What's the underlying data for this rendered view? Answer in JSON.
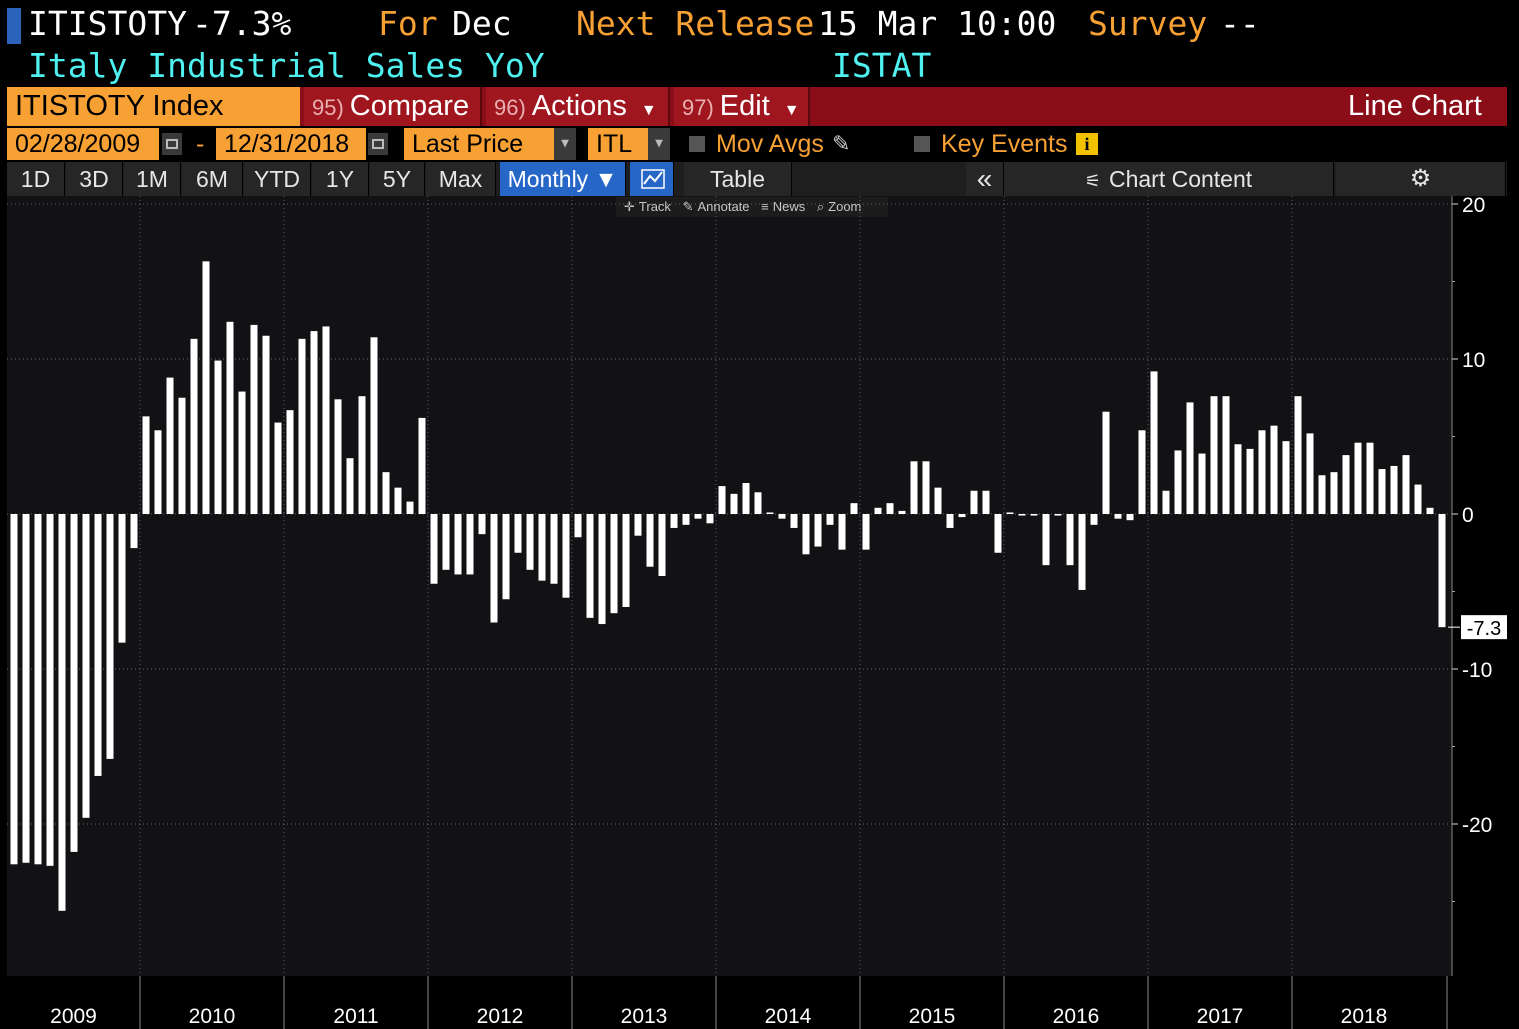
{
  "header": {
    "ticker": "ITISTOTY",
    "last_value": "-7.3%",
    "for_label": "For",
    "for_value": "Dec",
    "next_release_label": "Next Release",
    "next_release_value": "15 Mar 10:00",
    "survey_label": "Survey",
    "survey_value": "--",
    "description": "Italy Industrial Sales YoY",
    "source": "ISTAT"
  },
  "function_bar": {
    "index_field": "ITISTOTY Index",
    "compare": {
      "num": "95)",
      "label": "Compare"
    },
    "actions": {
      "num": "96)",
      "label": "Actions"
    },
    "edit": {
      "num": "97)",
      "label": "Edit"
    },
    "chart_type": "Line Chart"
  },
  "fields": {
    "start_date": "02/28/2009",
    "date_separator": "-",
    "end_date": "12/31/2018",
    "price_field": "Last Price",
    "currency": "ITL",
    "mov_avgs_label": "Mov Avgs",
    "key_events_label": "Key Events"
  },
  "range_buttons": [
    "1D",
    "3D",
    "1M",
    "6M",
    "YTD",
    "1Y",
    "5Y",
    "Max"
  ],
  "frequency": "Monthly ▼",
  "table_label": "Table",
  "chart_content_label": "Chart Content",
  "toolstrip": {
    "track": "Track",
    "annotate": "Annotate",
    "news": "News",
    "zoom": "Zoom"
  },
  "colors": {
    "accent_orange": "#f7a033",
    "title_cyan": "#4ff0f0",
    "function_bar_red": "#8b0d18",
    "selected_blue": "#2566c7",
    "bar_color": "#ffffff"
  },
  "chart_data": {
    "type": "bar",
    "title": "Italy Industrial Sales YoY",
    "x_start": "2009-02",
    "x_end": "2018-12",
    "frequency": "monthly",
    "ylim": [
      -29,
      20
    ],
    "yticks": [
      20,
      10,
      0,
      -10,
      -20
    ],
    "ytick_labels": [
      "20",
      "10",
      "0",
      "-10",
      "-20"
    ],
    "xtick_labels": [
      "2009",
      "2010",
      "2011",
      "2012",
      "2013",
      "2014",
      "2015",
      "2016",
      "2017",
      "2018"
    ],
    "last_value_label": "-7.3",
    "grid": true,
    "values": [
      -22.6,
      -22.5,
      -22.6,
      -22.7,
      -25.6,
      -21.8,
      -19.6,
      -16.9,
      -15.8,
      -8.3,
      -2.2,
      6.3,
      5.4,
      8.8,
      7.5,
      11.3,
      16.3,
      9.9,
      12.4,
      7.9,
      12.2,
      11.5,
      5.9,
      6.7,
      11.3,
      11.8,
      12.1,
      7.4,
      3.6,
      7.6,
      11.4,
      2.7,
      1.7,
      0.8,
      6.2,
      -4.5,
      -3.6,
      -3.9,
      -3.9,
      -1.3,
      -7.0,
      -5.5,
      -2.5,
      -3.6,
      -4.3,
      -4.5,
      -5.4,
      -1.5,
      -6.7,
      -7.1,
      -6.4,
      -6.0,
      -1.4,
      -3.4,
      -4.0,
      -0.9,
      -0.7,
      -0.3,
      -0.6,
      1.8,
      1.3,
      2.0,
      1.4,
      0.1,
      -0.3,
      -0.9,
      -2.6,
      -2.1,
      -0.7,
      -2.3,
      0.7,
      -2.3,
      0.4,
      0.7,
      0.2,
      3.4,
      3.4,
      1.7,
      -0.9,
      -0.2,
      1.5,
      1.5,
      -2.5,
      0.1,
      -0.1,
      -0.1,
      -3.3,
      -0.1,
      -3.3,
      -4.9,
      -0.7,
      6.6,
      -0.3,
      -0.4,
      5.4,
      9.2,
      1.5,
      4.1,
      7.2,
      3.9,
      7.6,
      7.6,
      4.5,
      4.2,
      5.4,
      5.7,
      4.7,
      7.6,
      5.2,
      2.5,
      2.7,
      3.8,
      4.6,
      4.6,
      2.9,
      3.1,
      3.8,
      1.9,
      0.4,
      -7.3
    ]
  }
}
